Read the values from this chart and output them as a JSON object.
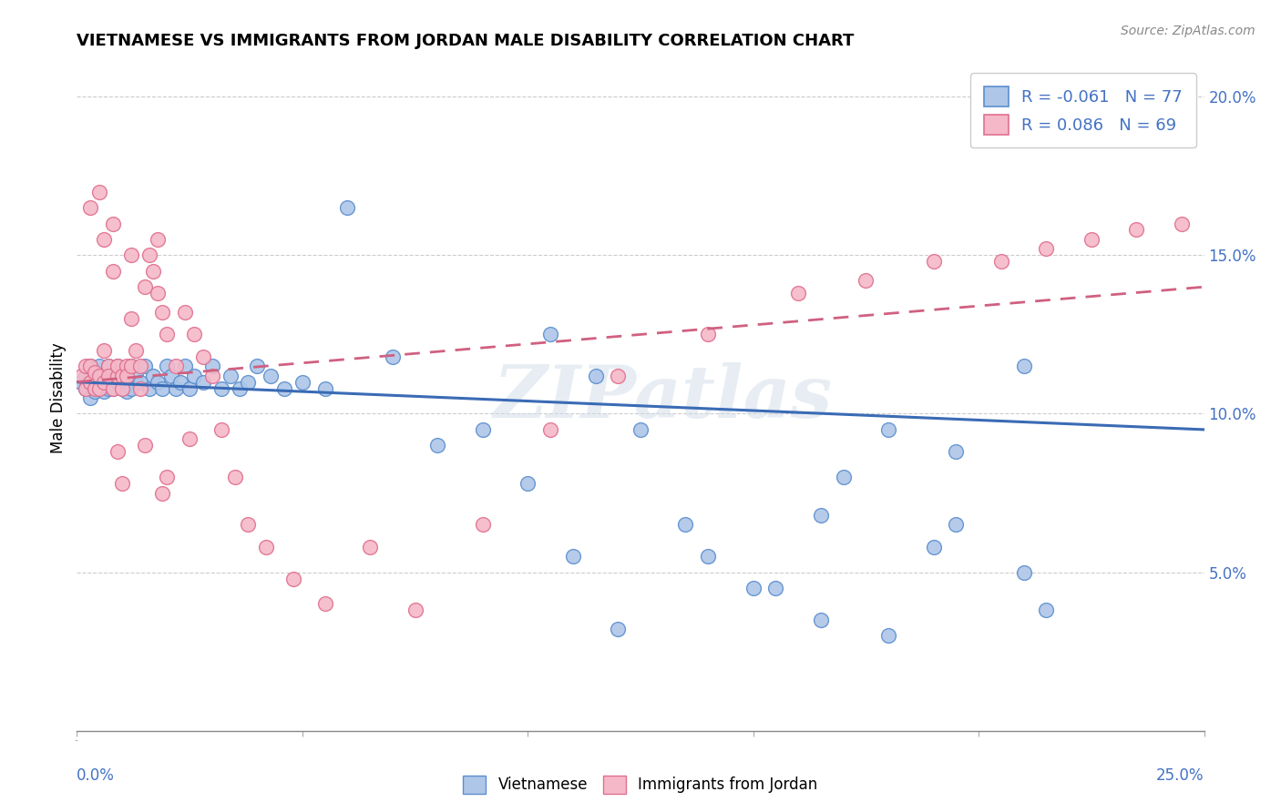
{
  "title": "VIETNAMESE VS IMMIGRANTS FROM JORDAN MALE DISABILITY CORRELATION CHART",
  "source": "Source: ZipAtlas.com",
  "ylabel": "Male Disability",
  "xlim": [
    0.0,
    0.25
  ],
  "ylim": [
    0.0,
    0.21
  ],
  "xticks": [
    0.0,
    0.05,
    0.1,
    0.15,
    0.2,
    0.25
  ],
  "yticks": [
    0.05,
    0.1,
    0.15,
    0.2
  ],
  "legend_label1": "Vietnamese",
  "legend_label2": "Immigrants from Jordan",
  "r1": "-0.061",
  "n1": "77",
  "r2": "0.086",
  "n2": "69",
  "color_blue_fill": "#aec6e8",
  "color_blue_edge": "#5b8fce",
  "color_pink_fill": "#f5b8c8",
  "color_pink_edge": "#e07090",
  "color_blue_line": "#3a6bb5",
  "color_pink_line": "#d06080",
  "color_tick_label": "#4472c4",
  "watermark": "ZIPatlas",
  "viet_x": [
    0.001,
    0.002,
    0.002,
    0.003,
    0.003,
    0.003,
    0.004,
    0.004,
    0.004,
    0.005,
    0.005,
    0.005,
    0.006,
    0.006,
    0.007,
    0.007,
    0.007,
    0.008,
    0.008,
    0.009,
    0.009,
    0.01,
    0.01,
    0.011,
    0.011,
    0.012,
    0.012,
    0.013,
    0.014,
    0.015,
    0.016,
    0.017,
    0.018,
    0.019,
    0.02,
    0.021,
    0.022,
    0.023,
    0.024,
    0.025,
    0.026,
    0.028,
    0.03,
    0.032,
    0.034,
    0.036,
    0.038,
    0.04,
    0.043,
    0.046,
    0.05,
    0.055,
    0.06,
    0.07,
    0.08,
    0.09,
    0.1,
    0.11,
    0.12,
    0.135,
    0.15,
    0.165,
    0.18,
    0.195,
    0.21,
    0.215,
    0.195,
    0.18,
    0.165,
    0.21,
    0.105,
    0.115,
    0.125,
    0.14,
    0.155,
    0.17,
    0.19
  ],
  "viet_y": [
    0.11,
    0.108,
    0.112,
    0.105,
    0.11,
    0.115,
    0.108,
    0.112,
    0.107,
    0.11,
    0.115,
    0.108,
    0.112,
    0.107,
    0.11,
    0.108,
    0.115,
    0.112,
    0.108,
    0.11,
    0.115,
    0.108,
    0.112,
    0.107,
    0.11,
    0.115,
    0.108,
    0.112,
    0.11,
    0.115,
    0.108,
    0.112,
    0.11,
    0.108,
    0.115,
    0.112,
    0.108,
    0.11,
    0.115,
    0.108,
    0.112,
    0.11,
    0.115,
    0.108,
    0.112,
    0.108,
    0.11,
    0.115,
    0.112,
    0.108,
    0.11,
    0.108,
    0.165,
    0.118,
    0.09,
    0.095,
    0.078,
    0.055,
    0.032,
    0.065,
    0.045,
    0.035,
    0.03,
    0.065,
    0.05,
    0.038,
    0.088,
    0.095,
    0.068,
    0.115,
    0.125,
    0.112,
    0.095,
    0.055,
    0.045,
    0.08,
    0.058
  ],
  "jordan_x": [
    0.001,
    0.002,
    0.002,
    0.003,
    0.003,
    0.004,
    0.004,
    0.005,
    0.005,
    0.006,
    0.006,
    0.007,
    0.007,
    0.008,
    0.008,
    0.009,
    0.009,
    0.01,
    0.01,
    0.011,
    0.011,
    0.012,
    0.012,
    0.013,
    0.014,
    0.015,
    0.016,
    0.017,
    0.018,
    0.019,
    0.02,
    0.022,
    0.024,
    0.026,
    0.028,
    0.03,
    0.032,
    0.035,
    0.038,
    0.042,
    0.048,
    0.055,
    0.065,
    0.075,
    0.09,
    0.105,
    0.12,
    0.14,
    0.16,
    0.175,
    0.19,
    0.205,
    0.215,
    0.225,
    0.235,
    0.245,
    0.01,
    0.015,
    0.02,
    0.025,
    0.005,
    0.008,
    0.012,
    0.018,
    0.003,
    0.006,
    0.009,
    0.014,
    0.019
  ],
  "jordan_y": [
    0.112,
    0.108,
    0.115,
    0.11,
    0.115,
    0.108,
    0.113,
    0.112,
    0.108,
    0.155,
    0.11,
    0.115,
    0.112,
    0.108,
    0.145,
    0.112,
    0.115,
    0.112,
    0.108,
    0.115,
    0.112,
    0.115,
    0.13,
    0.12,
    0.115,
    0.14,
    0.15,
    0.145,
    0.138,
    0.132,
    0.125,
    0.115,
    0.132,
    0.125,
    0.118,
    0.112,
    0.095,
    0.08,
    0.065,
    0.058,
    0.048,
    0.04,
    0.058,
    0.038,
    0.065,
    0.095,
    0.112,
    0.125,
    0.138,
    0.142,
    0.148,
    0.148,
    0.152,
    0.155,
    0.158,
    0.16,
    0.078,
    0.09,
    0.08,
    0.092,
    0.17,
    0.16,
    0.15,
    0.155,
    0.165,
    0.12,
    0.088,
    0.108,
    0.075
  ]
}
